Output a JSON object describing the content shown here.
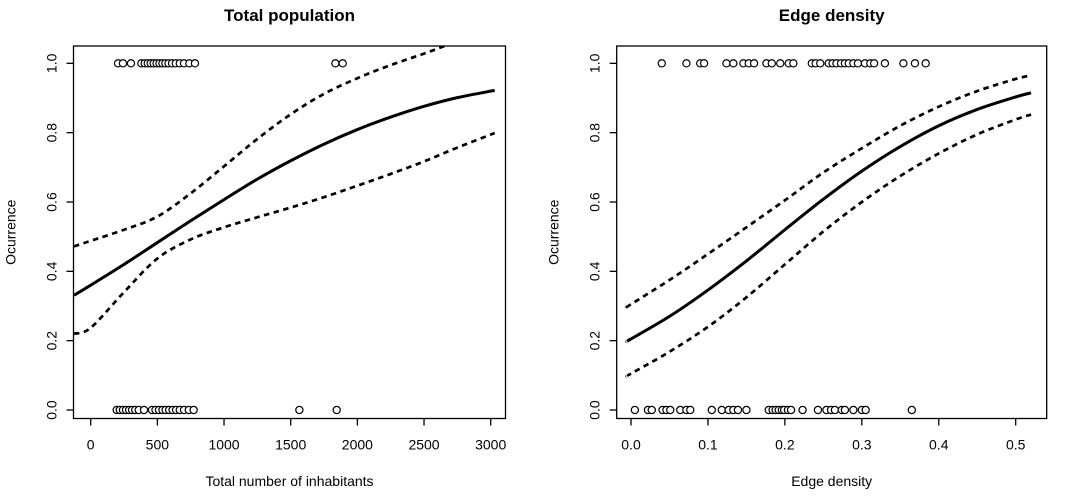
{
  "page": {
    "background_color": "#ffffff",
    "foreground_color": "#000000"
  },
  "chart_data": [
    {
      "type": "line",
      "title": "Total population",
      "xlabel": "Total number of inhabitants",
      "ylabel": "Ocurrence",
      "xlim": [
        -129,
        3111
      ],
      "ylim": [
        -0.0245,
        1.05
      ],
      "grid": false,
      "legend": null,
      "x_ticks": [
        0,
        500,
        1000,
        1500,
        2000,
        2500,
        3000
      ],
      "x_tick_labels": [
        "0",
        "500",
        "1000",
        "1500",
        "2000",
        "2500",
        "3000"
      ],
      "y_ticks": [
        0.0,
        0.2,
        0.4,
        0.6,
        0.8,
        1.0
      ],
      "y_tick_labels": [
        "0.0",
        "0.2",
        "0.4",
        "0.6",
        "0.8",
        "1.0"
      ],
      "series": [
        {
          "name": "logistic-fit",
          "style": "solid",
          "x": [
            -125,
            0,
            250,
            500,
            750,
            1000,
            1250,
            1500,
            1750,
            2000,
            2250,
            2500,
            2750,
            3030
          ],
          "y": [
            0.331,
            0.36,
            0.42,
            0.483,
            0.546,
            0.607,
            0.666,
            0.719,
            0.767,
            0.809,
            0.845,
            0.876,
            0.901,
            0.922
          ]
        },
        {
          "name": "ci-upper",
          "style": "dashed",
          "x": [
            -125,
            0,
            250,
            500,
            750,
            1000,
            1250,
            1500,
            1750,
            2000,
            2250,
            2500,
            2750,
            3030
          ],
          "y": [
            0.472,
            0.488,
            0.52,
            0.558,
            0.625,
            0.703,
            0.782,
            0.853,
            0.912,
            0.957,
            0.995,
            1.028,
            1.063,
            1.098
          ]
        },
        {
          "name": "ci-lower",
          "style": "dashed",
          "x": [
            -125,
            0,
            250,
            500,
            750,
            1000,
            1250,
            1500,
            1750,
            2000,
            2250,
            2500,
            2750,
            3030
          ],
          "y": [
            0.22,
            0.237,
            0.34,
            0.437,
            0.492,
            0.527,
            0.556,
            0.584,
            0.614,
            0.647,
            0.681,
            0.717,
            0.757,
            0.799
          ]
        }
      ],
      "rug_points": {
        "y1": [
          205,
          242,
          302,
          380,
          405,
          428,
          450,
          472,
          494,
          516,
          538,
          560,
          584,
          610,
          638,
          668,
          700,
          740,
          782,
          1835,
          1890
        ],
        "y0": [
          195,
          218,
          242,
          265,
          288,
          310,
          334,
          360,
          400,
          460,
          486,
          512,
          538,
          562,
          588,
          614,
          640,
          668,
          700,
          736,
          772,
          1565,
          1845
        ]
      }
    },
    {
      "type": "line",
      "title": "Edge density",
      "xlabel": "Edge density",
      "ylabel": "Ocurrence",
      "xlim": [
        -0.0186,
        0.5403
      ],
      "ylim": [
        -0.0245,
        1.05
      ],
      "grid": false,
      "legend": null,
      "x_ticks": [
        0.0,
        0.1,
        0.2,
        0.3,
        0.4,
        0.5
      ],
      "x_tick_labels": [
        "0.0",
        "0.1",
        "0.2",
        "0.3",
        "0.4",
        "0.5"
      ],
      "y_ticks": [
        0.0,
        0.2,
        0.4,
        0.6,
        0.8,
        1.0
      ],
      "y_tick_labels": [
        "0.0",
        "0.2",
        "0.4",
        "0.6",
        "0.8",
        "1.0"
      ],
      "series": [
        {
          "name": "logistic-fit",
          "style": "solid",
          "x": [
            -0.005,
            0,
            0.05,
            0.1,
            0.15,
            0.2,
            0.25,
            0.3,
            0.35,
            0.4,
            0.45,
            0.5,
            0.52
          ],
          "y": [
            0.198,
            0.205,
            0.27,
            0.346,
            0.43,
            0.52,
            0.608,
            0.689,
            0.76,
            0.82,
            0.867,
            0.903,
            0.915
          ]
        },
        {
          "name": "ci-upper",
          "style": "dashed",
          "x": [
            -0.005,
            0,
            0.05,
            0.1,
            0.15,
            0.2,
            0.25,
            0.3,
            0.35,
            0.4,
            0.45,
            0.5,
            0.52
          ],
          "y": [
            0.298,
            0.305,
            0.375,
            0.45,
            0.527,
            0.605,
            0.685,
            0.755,
            0.82,
            0.875,
            0.92,
            0.955,
            0.965
          ]
        },
        {
          "name": "ci-lower",
          "style": "dashed",
          "x": [
            -0.005,
            0,
            0.05,
            0.1,
            0.15,
            0.2,
            0.25,
            0.3,
            0.35,
            0.4,
            0.45,
            0.5,
            0.52
          ],
          "y": [
            0.098,
            0.105,
            0.168,
            0.24,
            0.325,
            0.42,
            0.515,
            0.6,
            0.675,
            0.74,
            0.795,
            0.838,
            0.852
          ]
        }
      ],
      "rug_points": {
        "y1": [
          0.04,
          0.072,
          0.09,
          0.095,
          0.124,
          0.133,
          0.146,
          0.153,
          0.16,
          0.176,
          0.183,
          0.194,
          0.205,
          0.211,
          0.235,
          0.24,
          0.246,
          0.257,
          0.262,
          0.267,
          0.273,
          0.278,
          0.283,
          0.289,
          0.295,
          0.304,
          0.311,
          0.316,
          0.33,
          0.354,
          0.369,
          0.383
        ],
        "y0": [
          0.005,
          0.022,
          0.027,
          0.041,
          0.046,
          0.051,
          0.064,
          0.072,
          0.077,
          0.105,
          0.118,
          0.127,
          0.133,
          0.139,
          0.15,
          0.179,
          0.184,
          0.188,
          0.192,
          0.196,
          0.199,
          0.204,
          0.208,
          0.223,
          0.243,
          0.254,
          0.26,
          0.265,
          0.274,
          0.278,
          0.289,
          0.3,
          0.305,
          0.365
        ]
      }
    }
  ]
}
